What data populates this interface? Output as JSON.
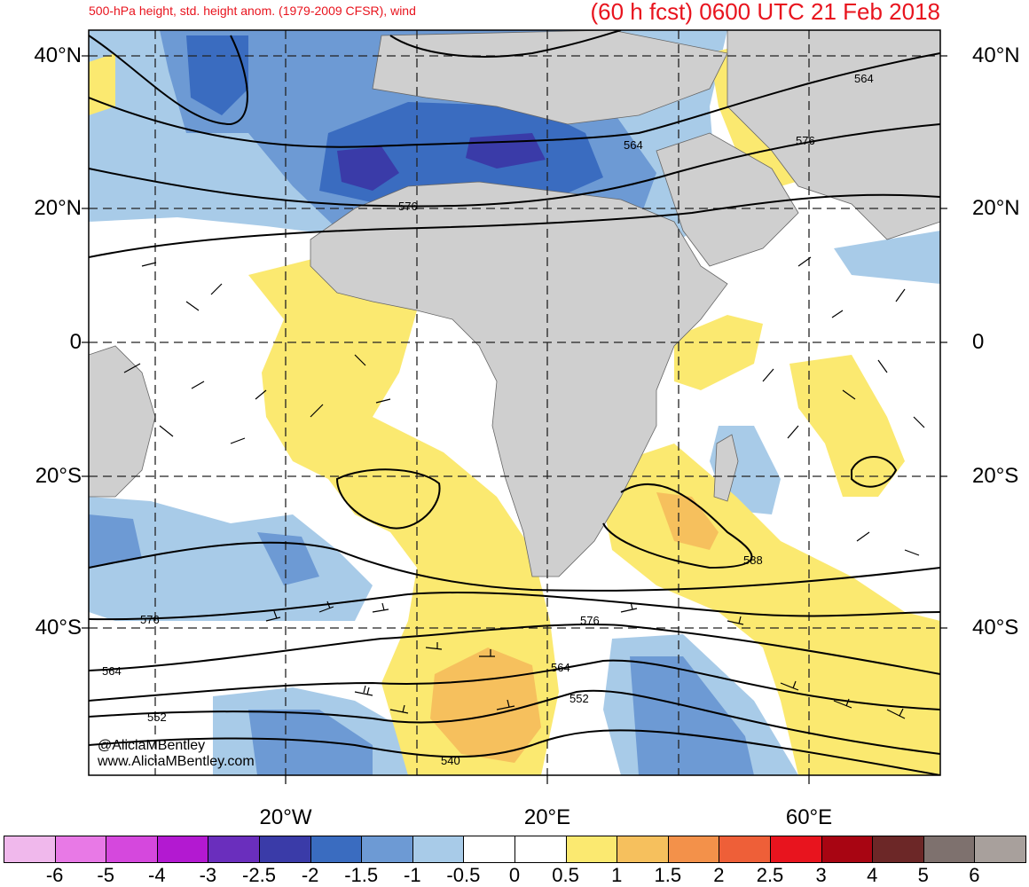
{
  "header": {
    "title_left": "500-hPa height, std. height anom. (1979-2009 CFSR), wind",
    "title_right": "(60 h fcst) 0600 UTC 21 Feb 2018"
  },
  "axes": {
    "lat_labels": [
      "40°N",
      "20°N",
      "0",
      "20°S",
      "40°S"
    ],
    "lon_labels": [
      "20°W",
      "20°E",
      "60°E"
    ]
  },
  "contours": {
    "labels": [
      "564",
      "576",
      "564",
      "576",
      "576",
      "588",
      "576",
      "564",
      "564",
      "552",
      "552",
      "540"
    ]
  },
  "credits": {
    "handle": "@AliciaMBentley",
    "site": "www.AliciaMBentley.com"
  },
  "colorbar": {
    "colors": [
      "#f0b8ec",
      "#e879e6",
      "#d548dd",
      "#b319d1",
      "#6a2ebd",
      "#3a3ba8",
      "#3a6cc0",
      "#6d9ad4",
      "#a8cbe8",
      "#ffffff",
      "#ffffff",
      "#fbe970",
      "#f6c05d",
      "#f3914a",
      "#ee5f38",
      "#e8141e",
      "#a80512",
      "#6c2727",
      "#7e716e",
      "#a8a09c"
    ],
    "ticks": [
      "-6",
      "-5",
      "-4",
      "-3",
      "-2.5",
      "-2",
      "-1.5",
      "-1",
      "-0.5",
      "0",
      "0.5",
      "1",
      "1.5",
      "2",
      "2.5",
      "3",
      "4",
      "5",
      "6"
    ]
  },
  "map": {
    "land_color": "#cfcfcf",
    "neg_light": "#a8cbe8",
    "neg_mid": "#6d9ad4",
    "neg_dark": "#3a6cc0",
    "neg_deep": "#3a3ba8",
    "pos_light": "#fbe970",
    "pos_mid": "#f6c05d",
    "pos_dark": "#f3914a"
  }
}
